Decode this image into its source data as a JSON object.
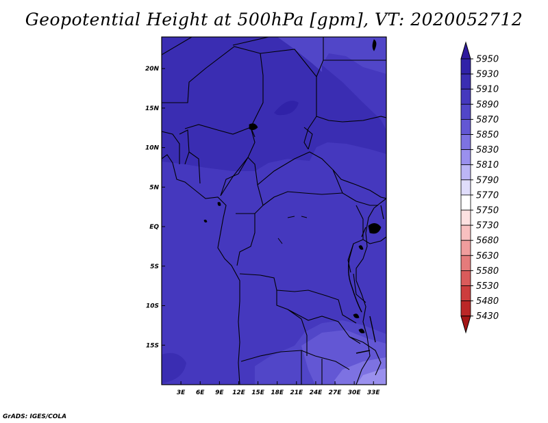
{
  "title": "Geopotential Height at 500hPa [gpm], VT: 2020052712",
  "credit": "GrADS: IGES/COLA",
  "chart_data": {
    "type": "heatmap",
    "title": "Geopotential Height at 500hPa [gpm], VT: 2020052712",
    "lon_range": [
      0,
      35
    ],
    "lat_range": [
      -20,
      24
    ],
    "x_ticks": [
      {
        "v": 3,
        "label": "3E"
      },
      {
        "v": 6,
        "label": "6E"
      },
      {
        "v": 9,
        "label": "9E"
      },
      {
        "v": 12,
        "label": "12E"
      },
      {
        "v": 15,
        "label": "15E"
      },
      {
        "v": 18,
        "label": "18E"
      },
      {
        "v": 21,
        "label": "21E"
      },
      {
        "v": 24,
        "label": "24E"
      },
      {
        "v": 27,
        "label": "27E"
      },
      {
        "v": 30,
        "label": "30E"
      },
      {
        "v": 33,
        "label": "33E"
      }
    ],
    "y_ticks": [
      {
        "v": 20,
        "label": "20N"
      },
      {
        "v": 15,
        "label": "15N"
      },
      {
        "v": 10,
        "label": "10N"
      },
      {
        "v": 5,
        "label": "5N"
      },
      {
        "v": 0,
        "label": "EQ"
      },
      {
        "v": -5,
        "label": "5S"
      },
      {
        "v": -10,
        "label": "10S"
      },
      {
        "v": -15,
        "label": "15S"
      }
    ],
    "colorbar": {
      "labels": [
        "5950",
        "5930",
        "5910",
        "5890",
        "5870",
        "5850",
        "5830",
        "5810",
        "5790",
        "5770",
        "5750",
        "5730",
        "5680",
        "5630",
        "5580",
        "5530",
        "5480",
        "5430"
      ],
      "colors": [
        "#2f1b9e",
        "#3022a8",
        "#3a2db2",
        "#4538be",
        "#5146c8",
        "#6357d4",
        "#7d72e2",
        "#9a90ee",
        "#bcb6f6",
        "#e0ddfb",
        "#ffffff",
        "#fde1e1",
        "#f8c0c0",
        "#f09d9d",
        "#e57b7b",
        "#da5b5b",
        "#cd3d3d",
        "#bb2727",
        "#a51616"
      ]
    },
    "regions": [
      {
        "level": "5890",
        "color": "#4538be"
      },
      {
        "level": "5910",
        "color": "#3a2db2"
      },
      {
        "level": "5870",
        "color": "#5146c8"
      },
      {
        "level": "5850",
        "color": "#6357d4"
      },
      {
        "level": "5830",
        "color": "#7d72e2"
      }
    ],
    "grid": false,
    "legend_placement": "right"
  }
}
